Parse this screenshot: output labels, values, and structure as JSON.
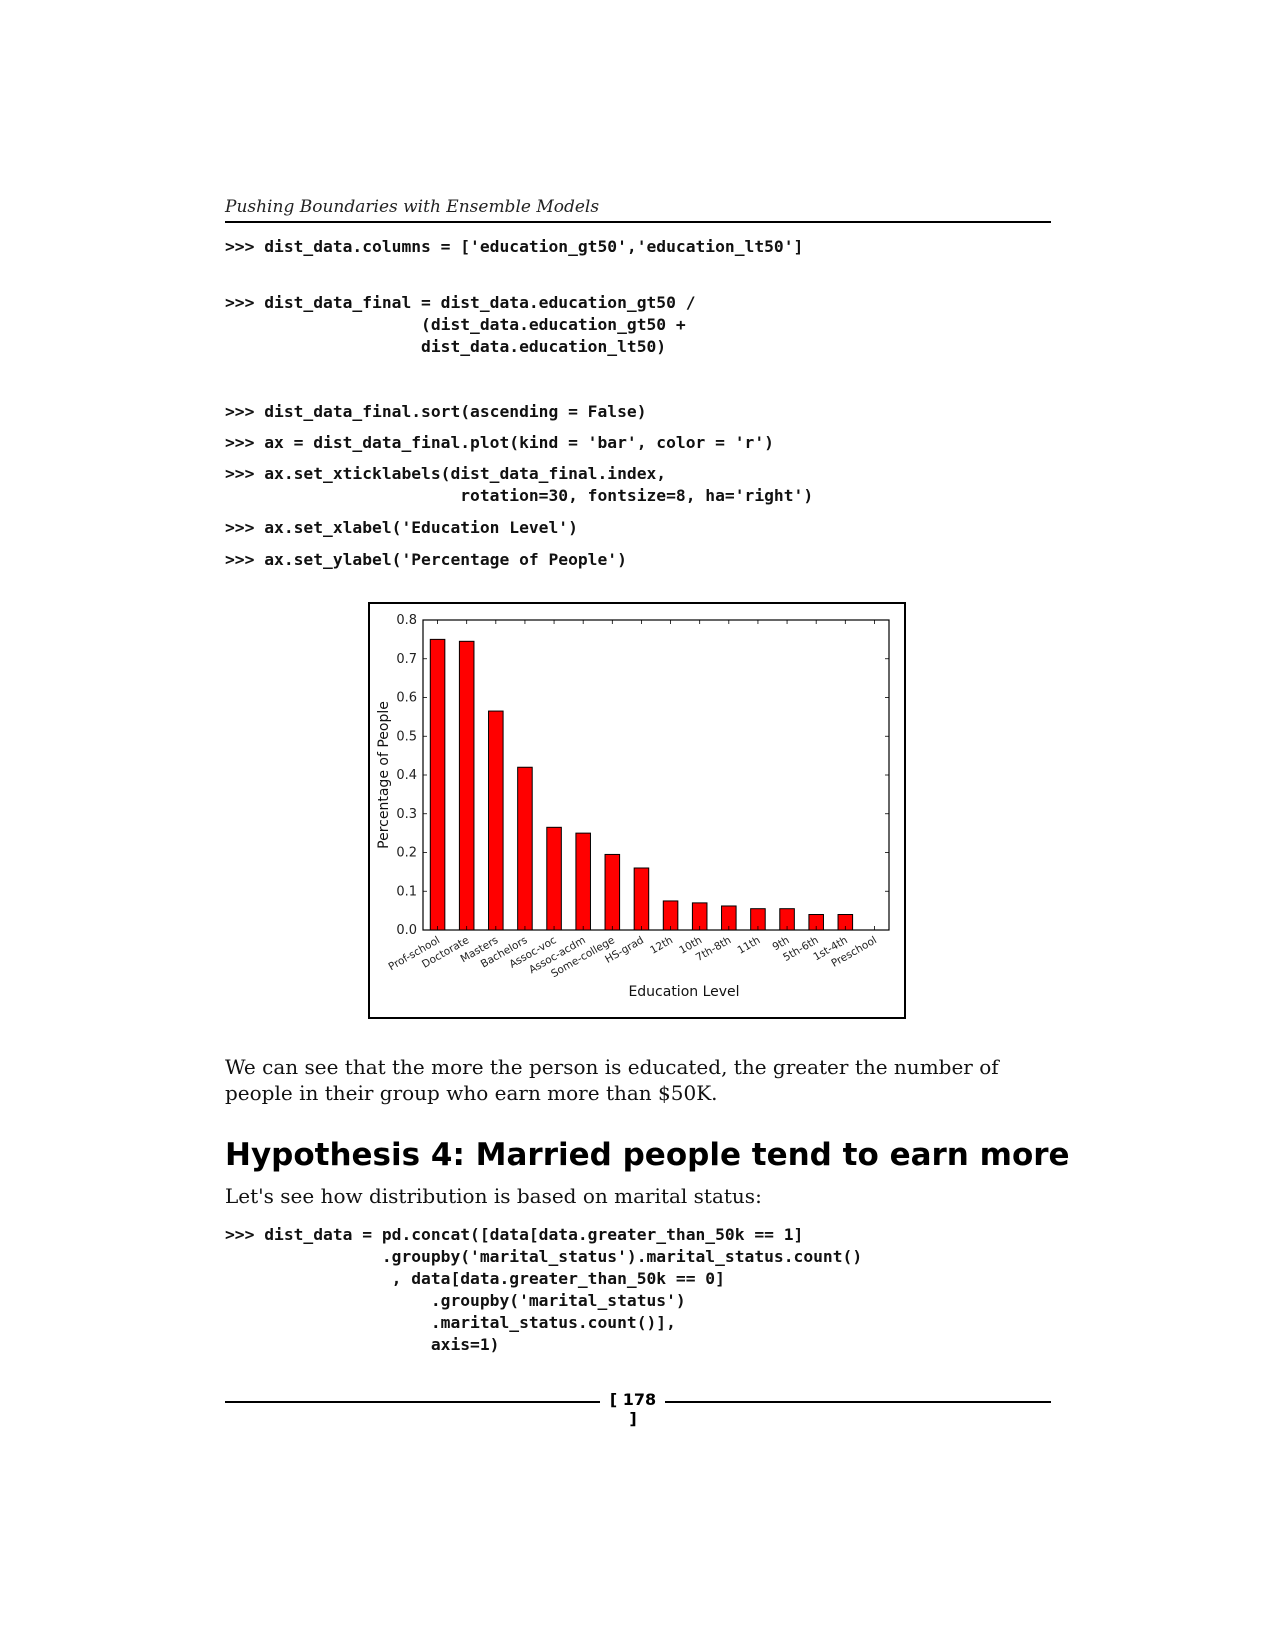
{
  "header": {
    "running_title": "Pushing Boundaries with Ensemble Models"
  },
  "code_blocks": {
    "columns": ">>> dist_data.columns = ['education_gt50','education_lt50']",
    "final": ">>> dist_data_final = dist_data.education_gt50 /\n                    (dist_data.education_gt50 +\n                    dist_data.education_lt50)",
    "sort": ">>> dist_data_final.sort(ascending = False)",
    "plot": ">>> ax = dist_data_final.plot(kind = 'bar', color = 'r')",
    "xticks": ">>> ax.set_xticklabels(dist_data_final.index,\n                        rotation=30, fontsize=8, ha='right')",
    "xlabel": ">>> ax.set_xlabel('Education Level')",
    "ylabel": ">>> ax.set_ylabel('Percentage of People')",
    "concat": ">>> dist_data = pd.concat([data[data.greater_than_50k == 1]\n                .groupby('marital_status').marital_status.count()\n                 , data[data.greater_than_50k == 0]\n                     .groupby('marital_status')\n                     .marital_status.count()],\n                     axis=1)"
  },
  "chart_data": {
    "type": "bar",
    "categories": [
      "Prof-school",
      "Doctorate",
      "Masters",
      "Bachelors",
      "Assoc-voc",
      "Assoc-acdm",
      "Some-college",
      "HS-grad",
      "12th",
      "10th",
      "7th-8th",
      "11th",
      "9th",
      "5th-6th",
      "1st-4th",
      "Preschool"
    ],
    "values": [
      0.75,
      0.745,
      0.565,
      0.42,
      0.265,
      0.25,
      0.195,
      0.16,
      0.075,
      0.07,
      0.062,
      0.055,
      0.055,
      0.04,
      0.04,
      0.0
    ],
    "xlabel": "Education Level",
    "ylabel": "Percentage of People",
    "ylim": [
      0,
      0.8
    ],
    "yticks": [
      "0.0",
      "0.1",
      "0.2",
      "0.3",
      "0.4",
      "0.5",
      "0.6",
      "0.7",
      "0.8"
    ],
    "bar_color": "#ff0000",
    "grid": false,
    "legend": "none"
  },
  "body": {
    "paragraph": "We can see that the more the person is educated, the greater the number of people in their group who earn more than $50K.",
    "heading": "Hypothesis 4: Married people tend to earn more",
    "intro": "Let's see how distribution is based on marital status:"
  },
  "footer": {
    "page_number": "[ 178 ]"
  }
}
